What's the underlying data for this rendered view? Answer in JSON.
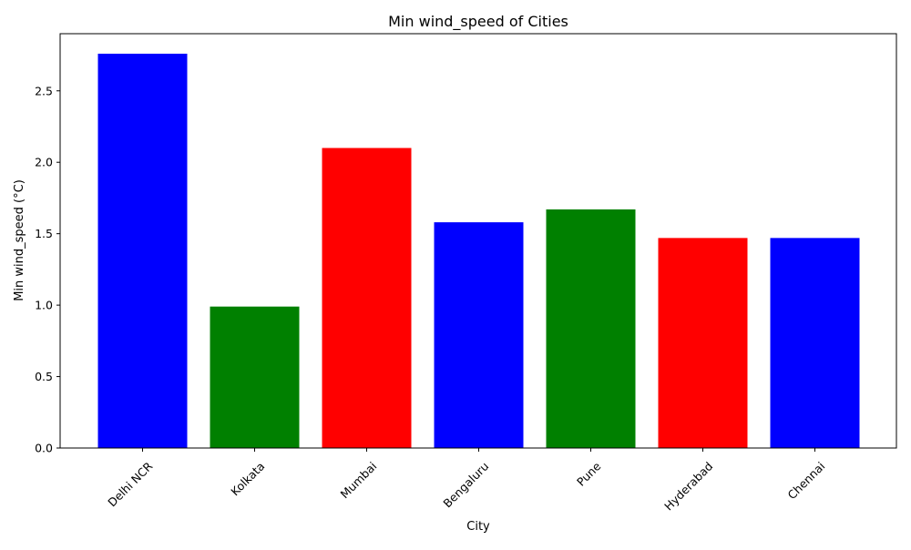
{
  "chart_data": {
    "type": "bar",
    "title": "Min wind_speed of Cities",
    "xlabel": "City",
    "ylabel": "Min wind_speed (°C)",
    "categories": [
      "Delhi NCR",
      "Kolkata",
      "Mumbai",
      "Bengaluru",
      "Pune",
      "Hyderabad",
      "Chennai"
    ],
    "values": [
      2.76,
      0.99,
      2.1,
      1.58,
      1.67,
      1.47,
      1.47
    ],
    "colors": [
      "#0000ff",
      "#008000",
      "#ff0000",
      "#0000ff",
      "#008000",
      "#ff0000",
      "#0000ff"
    ],
    "ylim": [
      0,
      2.9
    ],
    "yticks": [
      "0.0",
      "0.5",
      "1.0",
      "1.5",
      "2.0",
      "2.5"
    ],
    "xtick_rotation_deg": 45,
    "grid": false,
    "legend": "none"
  }
}
